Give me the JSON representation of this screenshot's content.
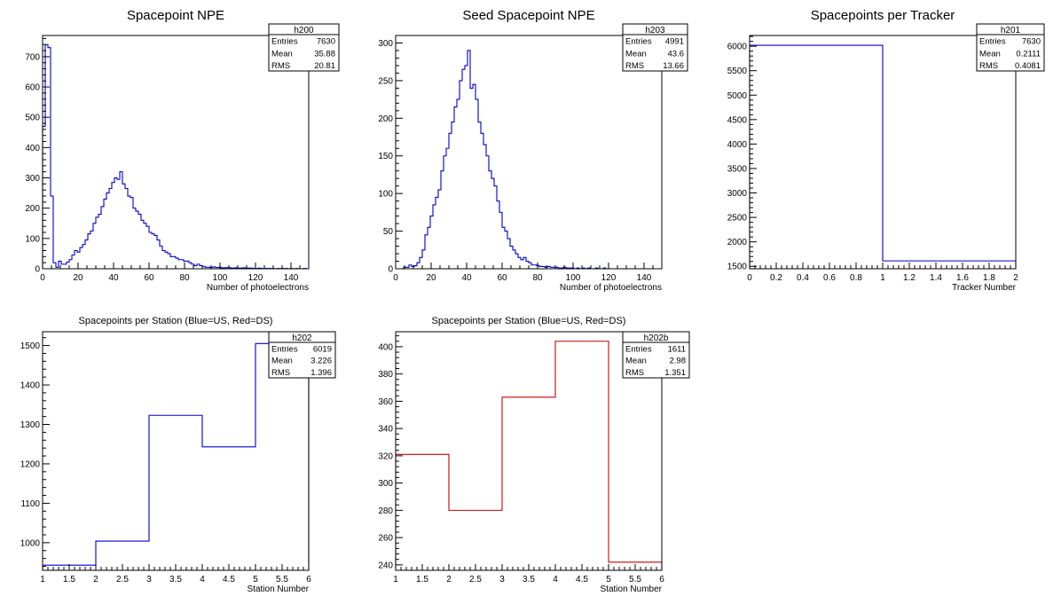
{
  "chart_data": [
    {
      "type": "histogram",
      "title": "Spacepoint NPE",
      "xlabel": "Number of photoelectrons",
      "ylabel": "",
      "xlim": [
        0,
        150
      ],
      "ylim": [
        0,
        770
      ],
      "xticks": [
        0,
        20,
        40,
        60,
        80,
        100,
        120,
        140
      ],
      "xtick_labels": [
        "0",
        "20",
        "40",
        "60",
        "80",
        "100",
        "120",
        "140"
      ],
      "yticks": [
        0,
        100,
        200,
        300,
        400,
        500,
        600,
        700
      ],
      "ytick_labels": [
        "0",
        "100",
        "200",
        "300",
        "400",
        "500",
        "600",
        "700"
      ],
      "line_color": "#0000cc",
      "bin_width": 1.5,
      "bin_start": 0,
      "values": [
        470,
        740,
        730,
        240,
        20,
        5,
        25,
        15,
        15,
        22,
        30,
        45,
        60,
        55,
        70,
        80,
        95,
        115,
        125,
        150,
        170,
        180,
        205,
        230,
        250,
        265,
        285,
        300,
        295,
        320,
        280,
        265,
        240,
        235,
        200,
        190,
        180,
        160,
        150,
        140,
        120,
        115,
        110,
        95,
        75,
        60,
        55,
        50,
        40,
        40,
        35,
        30,
        30,
        25,
        25,
        20,
        15,
        10,
        15,
        10,
        8,
        5,
        5,
        4,
        6,
        4,
        5,
        3,
        3,
        4,
        3,
        2,
        3,
        2,
        2,
        3,
        2,
        2,
        2,
        1,
        1,
        2,
        1,
        1,
        1,
        1,
        1,
        0,
        1,
        1,
        1,
        1,
        0,
        1,
        0,
        1,
        0,
        0,
        1,
        0
      ],
      "stats": {
        "name": "h200",
        "rows": [
          {
            "label": "Entries",
            "value": "7630"
          },
          {
            "label": "Mean",
            "value": "35.88"
          },
          {
            "label": "RMS",
            "value": "20.81"
          }
        ]
      }
    },
    {
      "type": "histogram",
      "title": "Seed Spacepoint NPE",
      "xlabel": "Number of photoelectrons",
      "ylabel": "",
      "xlim": [
        0,
        150
      ],
      "ylim": [
        0,
        310
      ],
      "xticks": [
        0,
        20,
        40,
        60,
        80,
        100,
        120,
        140
      ],
      "xtick_labels": [
        "0",
        "20",
        "40",
        "60",
        "80",
        "100",
        "120",
        "140"
      ],
      "yticks": [
        0,
        50,
        100,
        150,
        200,
        250,
        300
      ],
      "ytick_labels": [
        "0",
        "50",
        "100",
        "150",
        "200",
        "250",
        "300"
      ],
      "line_color": "#0000cc",
      "bin_width": 1.5,
      "bin_start": 0,
      "values": [
        0,
        0,
        0,
        2,
        2,
        5,
        3,
        4,
        8,
        15,
        25,
        45,
        55,
        70,
        85,
        95,
        105,
        130,
        150,
        160,
        180,
        195,
        215,
        225,
        250,
        265,
        270,
        290,
        240,
        245,
        225,
        195,
        180,
        165,
        150,
        130,
        120,
        110,
        90,
        75,
        55,
        50,
        40,
        30,
        25,
        20,
        15,
        12,
        15,
        10,
        8,
        5,
        5,
        4,
        3,
        3,
        2,
        3,
        2,
        2,
        2,
        1,
        1,
        2,
        1,
        1,
        1,
        0,
        1,
        0,
        1,
        0,
        1,
        0,
        0,
        1,
        0,
        0,
        1,
        0,
        0,
        0,
        0,
        0,
        0,
        0,
        0,
        0,
        0,
        0,
        0,
        0,
        0,
        0,
        0,
        0,
        0,
        0,
        0,
        0
      ],
      "stats": {
        "name": "h203",
        "rows": [
          {
            "label": "Entries",
            "value": "4991"
          },
          {
            "label": "Mean",
            "value": "43.6"
          },
          {
            "label": "RMS",
            "value": "13.66"
          }
        ]
      }
    },
    {
      "type": "histogram",
      "title": "Spacepoints per Tracker",
      "xlabel": "Tracker Number",
      "ylabel": "",
      "xlim": [
        0,
        2
      ],
      "ylim": [
        1450,
        6220
      ],
      "xticks": [
        0,
        0.2,
        0.4,
        0.6,
        0.8,
        1,
        1.2,
        1.4,
        1.6,
        1.8,
        2
      ],
      "xtick_labels": [
        "0",
        "0.2",
        "0.4",
        "0.6",
        "0.8",
        "1",
        "1.2",
        "1.4",
        "1.6",
        "1.8",
        "2"
      ],
      "yticks": [
        1500,
        2000,
        2500,
        3000,
        3500,
        4000,
        4500,
        5000,
        5500,
        6000
      ],
      "ytick_labels": [
        "1500",
        "2000",
        "2500",
        "3000",
        "3500",
        "4000",
        "4500",
        "5000",
        "5500",
        "6000"
      ],
      "line_color": "#0000cc",
      "bin_width": 1,
      "bin_start": 0,
      "values": [
        6019,
        1611
      ],
      "stats": {
        "name": "h201",
        "rows": [
          {
            "label": "Entries",
            "value": "7630"
          },
          {
            "label": "Mean",
            "value": "0.2111"
          },
          {
            "label": "RMS",
            "value": "0.4081"
          }
        ]
      }
    },
    {
      "type": "histogram",
      "title": "Spacepoints per Station (Blue=US, Red=DS)",
      "xlabel": "Station Number",
      "ylabel": "",
      "xlim": [
        1,
        6
      ],
      "ylim": [
        930,
        1535
      ],
      "xticks": [
        1,
        1.5,
        2,
        2.5,
        3,
        3.5,
        4,
        4.5,
        5,
        5.5,
        6
      ],
      "xtick_labels": [
        "1",
        "1.5",
        "2",
        "2.5",
        "3",
        "3.5",
        "4",
        "4.5",
        "5",
        "5.5",
        "6"
      ],
      "yticks": [
        1000,
        1100,
        1200,
        1300,
        1400,
        1500
      ],
      "ytick_labels": [
        "1000",
        "1100",
        "1200",
        "1300",
        "1400",
        "1500"
      ],
      "line_color": "#0000cc",
      "bin_width": 1,
      "bin_start": 1,
      "values": [
        943,
        1004,
        1323,
        1243,
        1505
      ],
      "stats": {
        "name": "h202",
        "rows": [
          {
            "label": "Entries",
            "value": "6019"
          },
          {
            "label": "Mean",
            "value": "3.226"
          },
          {
            "label": "RMS",
            "value": "1.396"
          }
        ]
      }
    },
    {
      "type": "histogram",
      "title": "Spacepoints per Station (Blue=US, Red=DS)",
      "xlabel": "Station Number",
      "ylabel": "",
      "xlim": [
        1,
        6
      ],
      "ylim": [
        236,
        411
      ],
      "xticks": [
        1,
        1.5,
        2,
        2.5,
        3,
        3.5,
        4,
        4.5,
        5,
        5.5,
        6
      ],
      "xtick_labels": [
        "1",
        "1.5",
        "2",
        "2.5",
        "3",
        "3.5",
        "4",
        "4.5",
        "5",
        "5.5",
        "6"
      ],
      "yticks": [
        240,
        260,
        280,
        300,
        320,
        340,
        360,
        380,
        400
      ],
      "ytick_labels": [
        "240",
        "260",
        "280",
        "300",
        "320",
        "340",
        "360",
        "380",
        "400"
      ],
      "line_color": "#cc0000",
      "bin_width": 1,
      "bin_start": 1,
      "values": [
        321,
        280,
        363,
        404,
        242
      ],
      "stats": {
        "name": "h202b",
        "rows": [
          {
            "label": "Entries",
            "value": "1611"
          },
          {
            "label": "Mean",
            "value": "2.98"
          },
          {
            "label": "RMS",
            "value": "1.351"
          }
        ]
      }
    }
  ]
}
